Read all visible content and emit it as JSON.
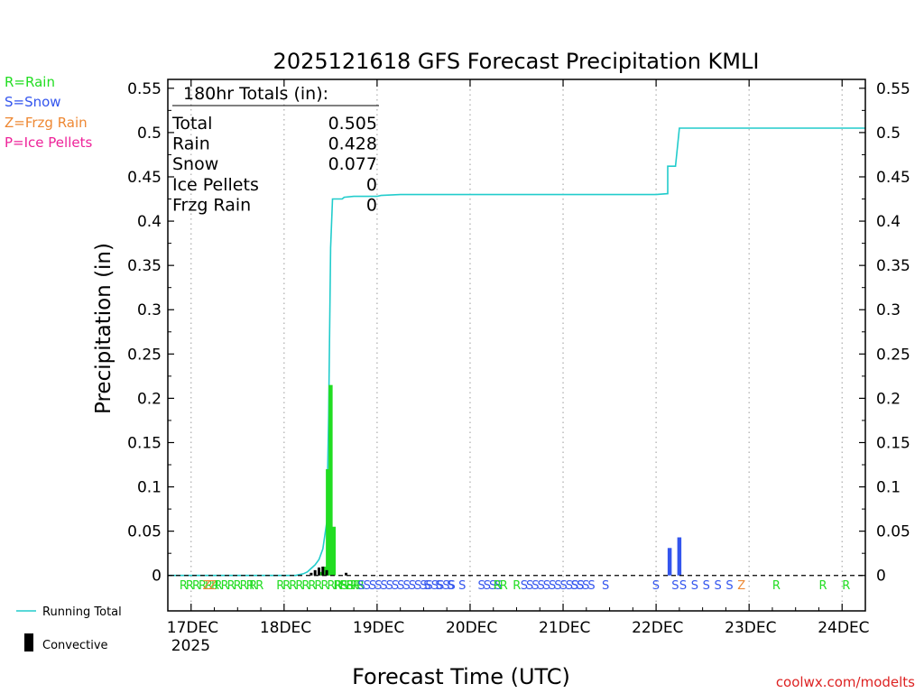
{
  "chart_data": {
    "type": "bar",
    "title": "2025121618 GFS Forecast Precipitation KMLI",
    "xlabel": "Forecast Time (UTC)",
    "ylabel": "Precipitation (in)",
    "ylim": [
      -0.04,
      0.56
    ],
    "yticks": [
      0,
      0.05,
      0.1,
      0.15,
      0.2,
      0.25,
      0.3,
      0.35,
      0.4,
      0.45,
      0.5,
      0.55
    ],
    "ytick_labels": [
      "0",
      "0.05",
      "0.1",
      "0.15",
      "0.2",
      "0.25",
      "0.3",
      "0.35",
      "0.4",
      "0.45",
      "0.5",
      "0.55"
    ],
    "x_unit": "forecast hours from 2025-12-16 18Z",
    "xlim": [
      0,
      180
    ],
    "xticks": [
      {
        "hour": 6,
        "label": "17DEC",
        "sublabel": "2025"
      },
      {
        "hour": 30,
        "label": "18DEC"
      },
      {
        "hour": 54,
        "label": "19DEC"
      },
      {
        "hour": 78,
        "label": "20DEC"
      },
      {
        "hour": 102,
        "label": "21DEC"
      },
      {
        "hour": 126,
        "label": "22DEC"
      },
      {
        "hour": 150,
        "label": "23DEC"
      },
      {
        "hour": 174,
        "label": "24DEC"
      }
    ],
    "legend": [
      {
        "label": "R=Rain",
        "color": "#22dd22"
      },
      {
        "label": "S=Snow",
        "color": "#3355ee"
      },
      {
        "label": "Z=Frzg Rain",
        "color": "#ee8833"
      },
      {
        "label": "P=Ice Pellets",
        "color": "#ee2299"
      }
    ],
    "series_legend": [
      {
        "name": "Running Total",
        "color": "#22cccc"
      },
      {
        "name": "Convective",
        "color": "#000000"
      }
    ],
    "totals": {
      "heading": "180hr Totals (in):",
      "rows": [
        {
          "label": "Total",
          "value": "0.505"
        },
        {
          "label": "Rain",
          "value": "0.428"
        },
        {
          "label": "Snow",
          "value": "0.077"
        },
        {
          "label": "Ice Pellets",
          "value": "0"
        },
        {
          "label": "Frzg Rain",
          "value": "0"
        }
      ]
    },
    "series": [
      {
        "name": "Running Total",
        "type": "step-line",
        "points": [
          [
            0,
            0
          ],
          [
            33,
            0
          ],
          [
            35,
            0.002
          ],
          [
            36,
            0.004
          ],
          [
            37,
            0.008
          ],
          [
            38,
            0.012
          ],
          [
            39,
            0.018
          ],
          [
            40,
            0.03
          ],
          [
            41,
            0.06
          ],
          [
            41.5,
            0.18
          ],
          [
            42,
            0.37
          ],
          [
            42.5,
            0.425
          ],
          [
            45,
            0.425
          ],
          [
            45.5,
            0.427
          ],
          [
            48,
            0.428
          ],
          [
            54,
            0.428
          ],
          [
            55,
            0.429
          ],
          [
            60,
            0.43
          ],
          [
            66,
            0.43
          ],
          [
            126,
            0.43
          ],
          [
            129,
            0.431
          ],
          [
            129,
            0.462
          ],
          [
            131,
            0.462
          ],
          [
            132,
            0.505
          ],
          [
            180,
            0.505
          ]
        ]
      },
      {
        "name": "Precipitation",
        "bars": [
          {
            "hour": 39.5,
            "value": 0.004,
            "color": "#22dd22"
          },
          {
            "hour": 40.5,
            "value": 0.01,
            "color": "#22dd22"
          },
          {
            "hour": 41.3,
            "value": 0.12,
            "color": "#22dd22"
          },
          {
            "hour": 42.0,
            "value": 0.215,
            "color": "#22dd22"
          },
          {
            "hour": 42.8,
            "value": 0.055,
            "color": "#22dd22"
          },
          {
            "hour": 129.5,
            "value": 0.031,
            "color": "#3355ee"
          },
          {
            "hour": 132.0,
            "value": 0.043,
            "color": "#3355ee"
          }
        ]
      },
      {
        "name": "Convective",
        "bars": [
          {
            "hour": 37.0,
            "value": 0.003
          },
          {
            "hour": 38.0,
            "value": 0.006
          },
          {
            "hour": 39.0,
            "value": 0.009
          },
          {
            "hour": 40.0,
            "value": 0.01
          },
          {
            "hour": 41.0,
            "value": 0.006
          },
          {
            "hour": 46.0,
            "value": 0.003
          }
        ]
      }
    ],
    "precip_type_markers": [
      {
        "hour": 3,
        "text": "RRRRRR",
        "color": "#22dd22"
      },
      {
        "hour": 9,
        "text": "ZZ",
        "color": "#ee8833"
      },
      {
        "hour": 12,
        "text": "RRRRRR",
        "color": "#22dd22"
      },
      {
        "hour": 21,
        "text": "RR",
        "color": "#22dd22"
      },
      {
        "hour": 28,
        "text": "RRRRRRRRRRRRR",
        "color": "#22dd22"
      },
      {
        "hour": 43,
        "text": "RSS",
        "color": "#22dd22"
      },
      {
        "hour": 47,
        "text": "RR",
        "color": "#22dd22"
      },
      {
        "hour": 49,
        "text": "SSSSSSSSSSSSSSSSS",
        "color": "#3355ee"
      },
      {
        "hour": 66,
        "text": "S",
        "color": "#3355ee"
      },
      {
        "hour": 69,
        "text": "S",
        "color": "#3355ee"
      },
      {
        "hour": 72,
        "text": "S",
        "color": "#3355ee"
      },
      {
        "hour": 75,
        "text": "S",
        "color": "#3355ee"
      },
      {
        "hour": 80,
        "text": "SSSS",
        "color": "#3355ee"
      },
      {
        "hour": 84,
        "text": "RR",
        "color": "#22dd22"
      },
      {
        "hour": 89,
        "text": "R",
        "color": "#22dd22"
      },
      {
        "hour": 91,
        "text": "SSSSSSSSSSS",
        "color": "#3355ee"
      },
      {
        "hour": 104,
        "text": "SSSS",
        "color": "#3355ee"
      },
      {
        "hour": 112,
        "text": "S",
        "color": "#3355ee"
      },
      {
        "hour": 125,
        "text": "S",
        "color": "#3355ee"
      },
      {
        "hour": 130,
        "text": "S",
        "color": "#3355ee"
      },
      {
        "hour": 132,
        "text": "S",
        "color": "#3355ee"
      },
      {
        "hour": 135,
        "text": "S",
        "color": "#3355ee"
      },
      {
        "hour": 138,
        "text": "S",
        "color": "#3355ee"
      },
      {
        "hour": 141,
        "text": "S",
        "color": "#3355ee"
      },
      {
        "hour": 144,
        "text": "S",
        "color": "#3355ee"
      },
      {
        "hour": 147,
        "text": "Z",
        "color": "#ee8833"
      },
      {
        "hour": 156,
        "text": "R",
        "color": "#22dd22"
      },
      {
        "hour": 168,
        "text": "R",
        "color": "#22dd22"
      },
      {
        "hour": 174,
        "text": "R",
        "color": "#22dd22"
      }
    ],
    "grid": "vertical dotted at day boundaries",
    "credit": "coolwx.com/modelts"
  }
}
